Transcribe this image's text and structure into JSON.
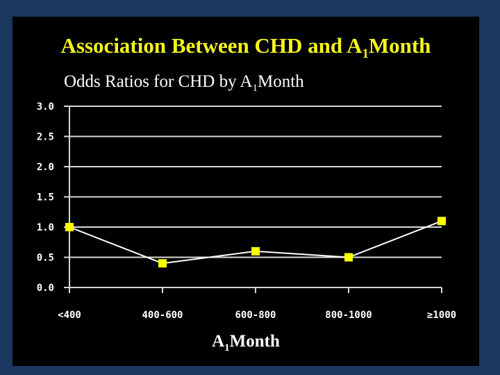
{
  "chart_data": {
    "type": "line",
    "title": "Association Between CHD and A1Month",
    "title_parts": {
      "pre": "Association Between CHD and A",
      "sub": "1",
      "post": "Month"
    },
    "subtitle": "Odds Ratios for CHD by A1Month",
    "subtitle_parts": {
      "pre": "Odds Ratios for CHD by A",
      "sub": "1",
      "post": "Month"
    },
    "xlabel": "A1Month",
    "xlabel_parts": {
      "pre": "A",
      "sub": "1",
      "post": "Month"
    },
    "ylabel": "",
    "categories": [
      "<400",
      "400-600",
      "600-800",
      "800-1000",
      "≥1000"
    ],
    "series": [
      {
        "name": "Odds Ratio",
        "values": [
          1.0,
          0.4,
          0.6,
          0.5,
          1.1
        ]
      }
    ],
    "ylim": [
      0,
      3.0
    ],
    "yticks": [
      "0.0",
      "0.5",
      "1.0",
      "1.5",
      "2.0",
      "2.5",
      "3.0"
    ],
    "grid": true,
    "colors": {
      "background": "#000000",
      "frame": "#1b365f",
      "title": "#f5f51e",
      "marker": "#ffff00",
      "line": "#ffffff"
    }
  }
}
